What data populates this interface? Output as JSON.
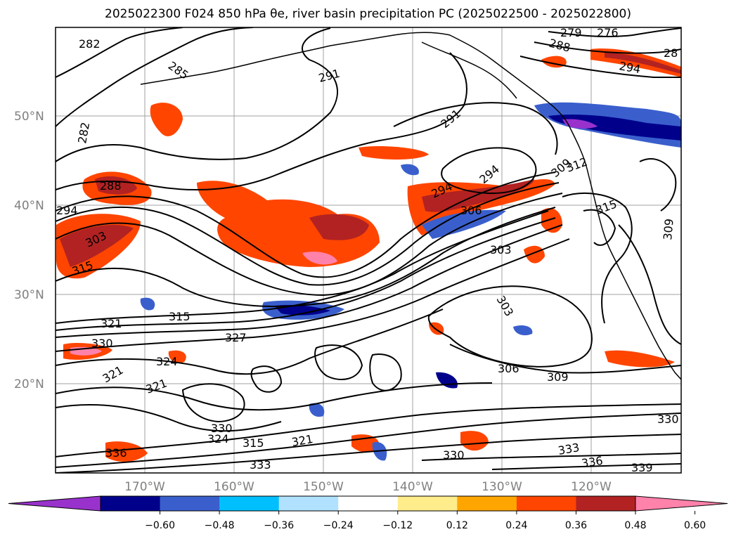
{
  "title": "2025022300 F024 850 hPa θe, river basin precipitation PC (2025022500 - 2025022800)",
  "map": {
    "lat_labels": [
      "50°N",
      "40°N",
      "30°N",
      "20°N"
    ],
    "lon_labels": [
      "170°W",
      "160°W",
      "150°W",
      "140°W",
      "130°W",
      "120°W"
    ],
    "contour_labels": [
      "282",
      "285",
      "291",
      "282",
      "288",
      "294",
      "303",
      "315",
      "321",
      "330",
      "327",
      "315",
      "324",
      "321",
      "321",
      "330",
      "324",
      "315",
      "321",
      "330",
      "333",
      "336",
      "339",
      "330",
      "333",
      "336",
      "306",
      "309",
      "303",
      "303",
      "306",
      "312",
      "309",
      "315",
      "309",
      "294",
      "294",
      "291",
      "279",
      "276",
      "288",
      "294",
      "28"
    ]
  },
  "colorbar": {
    "ticks": [
      "−0.60",
      "−0.48",
      "−0.36",
      "−0.24",
      "−0.12",
      "0.12",
      "0.24",
      "0.36",
      "0.48",
      "0.60"
    ],
    "colors": [
      "#9932CC",
      "#00008B",
      "#3A5FCD",
      "#00BFFF",
      "#B0E2FF",
      "#FFFFFF",
      "#FFEC8B",
      "#FFA500",
      "#FF4500",
      "#B22222",
      "#FF82AB"
    ]
  }
}
